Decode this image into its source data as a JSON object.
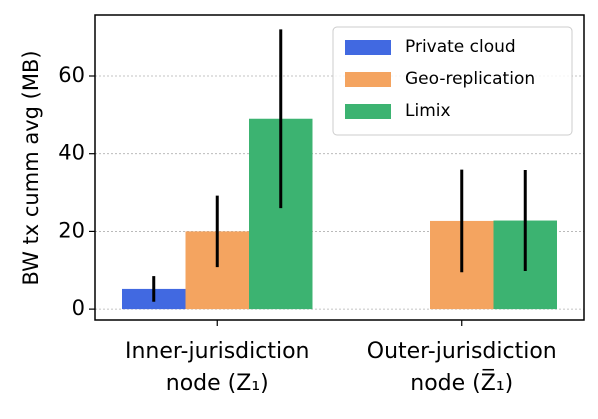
{
  "chart_data": {
    "type": "bar",
    "y_label": "BW tx cumm avg (MB)",
    "categories": [
      [
        "Inner-jurisdiction",
        "node (Z₁)"
      ],
      [
        "Outer-jurisdiction",
        "node (Z̅₁)"
      ]
    ],
    "series": [
      {
        "name": "Private cloud",
        "color": "#4169e1",
        "values": [
          5.2,
          0
        ],
        "errors": [
          3.3,
          0
        ]
      },
      {
        "name": "Geo-replication",
        "color": "#f4a460",
        "values": [
          20,
          22.7
        ],
        "errors": [
          9.2,
          13.2
        ]
      },
      {
        "name": "Limix",
        "color": "#3cb371",
        "values": [
          49,
          22.8
        ],
        "errors": [
          23,
          13
        ]
      }
    ],
    "ylim": [
      -2.8,
      75.7
    ],
    "yticks": [
      0,
      20,
      40,
      60
    ],
    "grid": true,
    "legend": "upper right"
  }
}
